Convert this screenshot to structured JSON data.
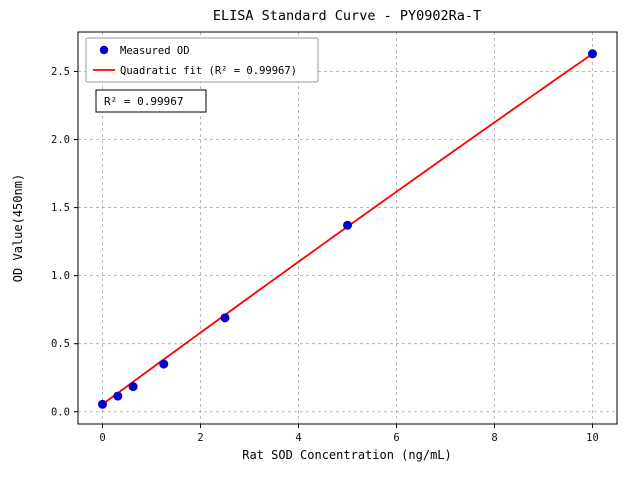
{
  "chart_data": {
    "type": "scatter",
    "title": "ELISA Standard Curve - PY0902Ra-T",
    "xlabel": "Rat SOD Concentration (ng/mL)",
    "ylabel": "OD Value(450nm)",
    "xlim": [
      -0.5,
      10.5
    ],
    "ylim": [
      -0.09,
      2.79
    ],
    "xticks": [
      0,
      2,
      4,
      6,
      8,
      10
    ],
    "yticks": [
      0.0,
      0.5,
      1.0,
      1.5,
      2.0,
      2.5
    ],
    "grid": true,
    "legend_position": "upper-left",
    "series": [
      {
        "name": "Measured OD",
        "type": "scatter",
        "color": "#0000cd",
        "x": [
          0,
          0.3125,
          0.625,
          1.25,
          2.5,
          5,
          10
        ],
        "y": [
          0.055,
          0.115,
          0.185,
          0.35,
          0.69,
          1.37,
          2.63
        ]
      },
      {
        "name": "Quadratic fit (R² = 0.99967)",
        "type": "line",
        "color": "#ff0000",
        "fit_coeffs": {
          "intercept": 0.055,
          "linear": 0.2645,
          "quadratic": -0.0007
        },
        "x_range": [
          0,
          10
        ]
      }
    ],
    "annotation": "R² = 0.99967",
    "colors": {
      "grid": "#aaaaaa",
      "axis": "#000000",
      "background": "#ffffff"
    }
  }
}
